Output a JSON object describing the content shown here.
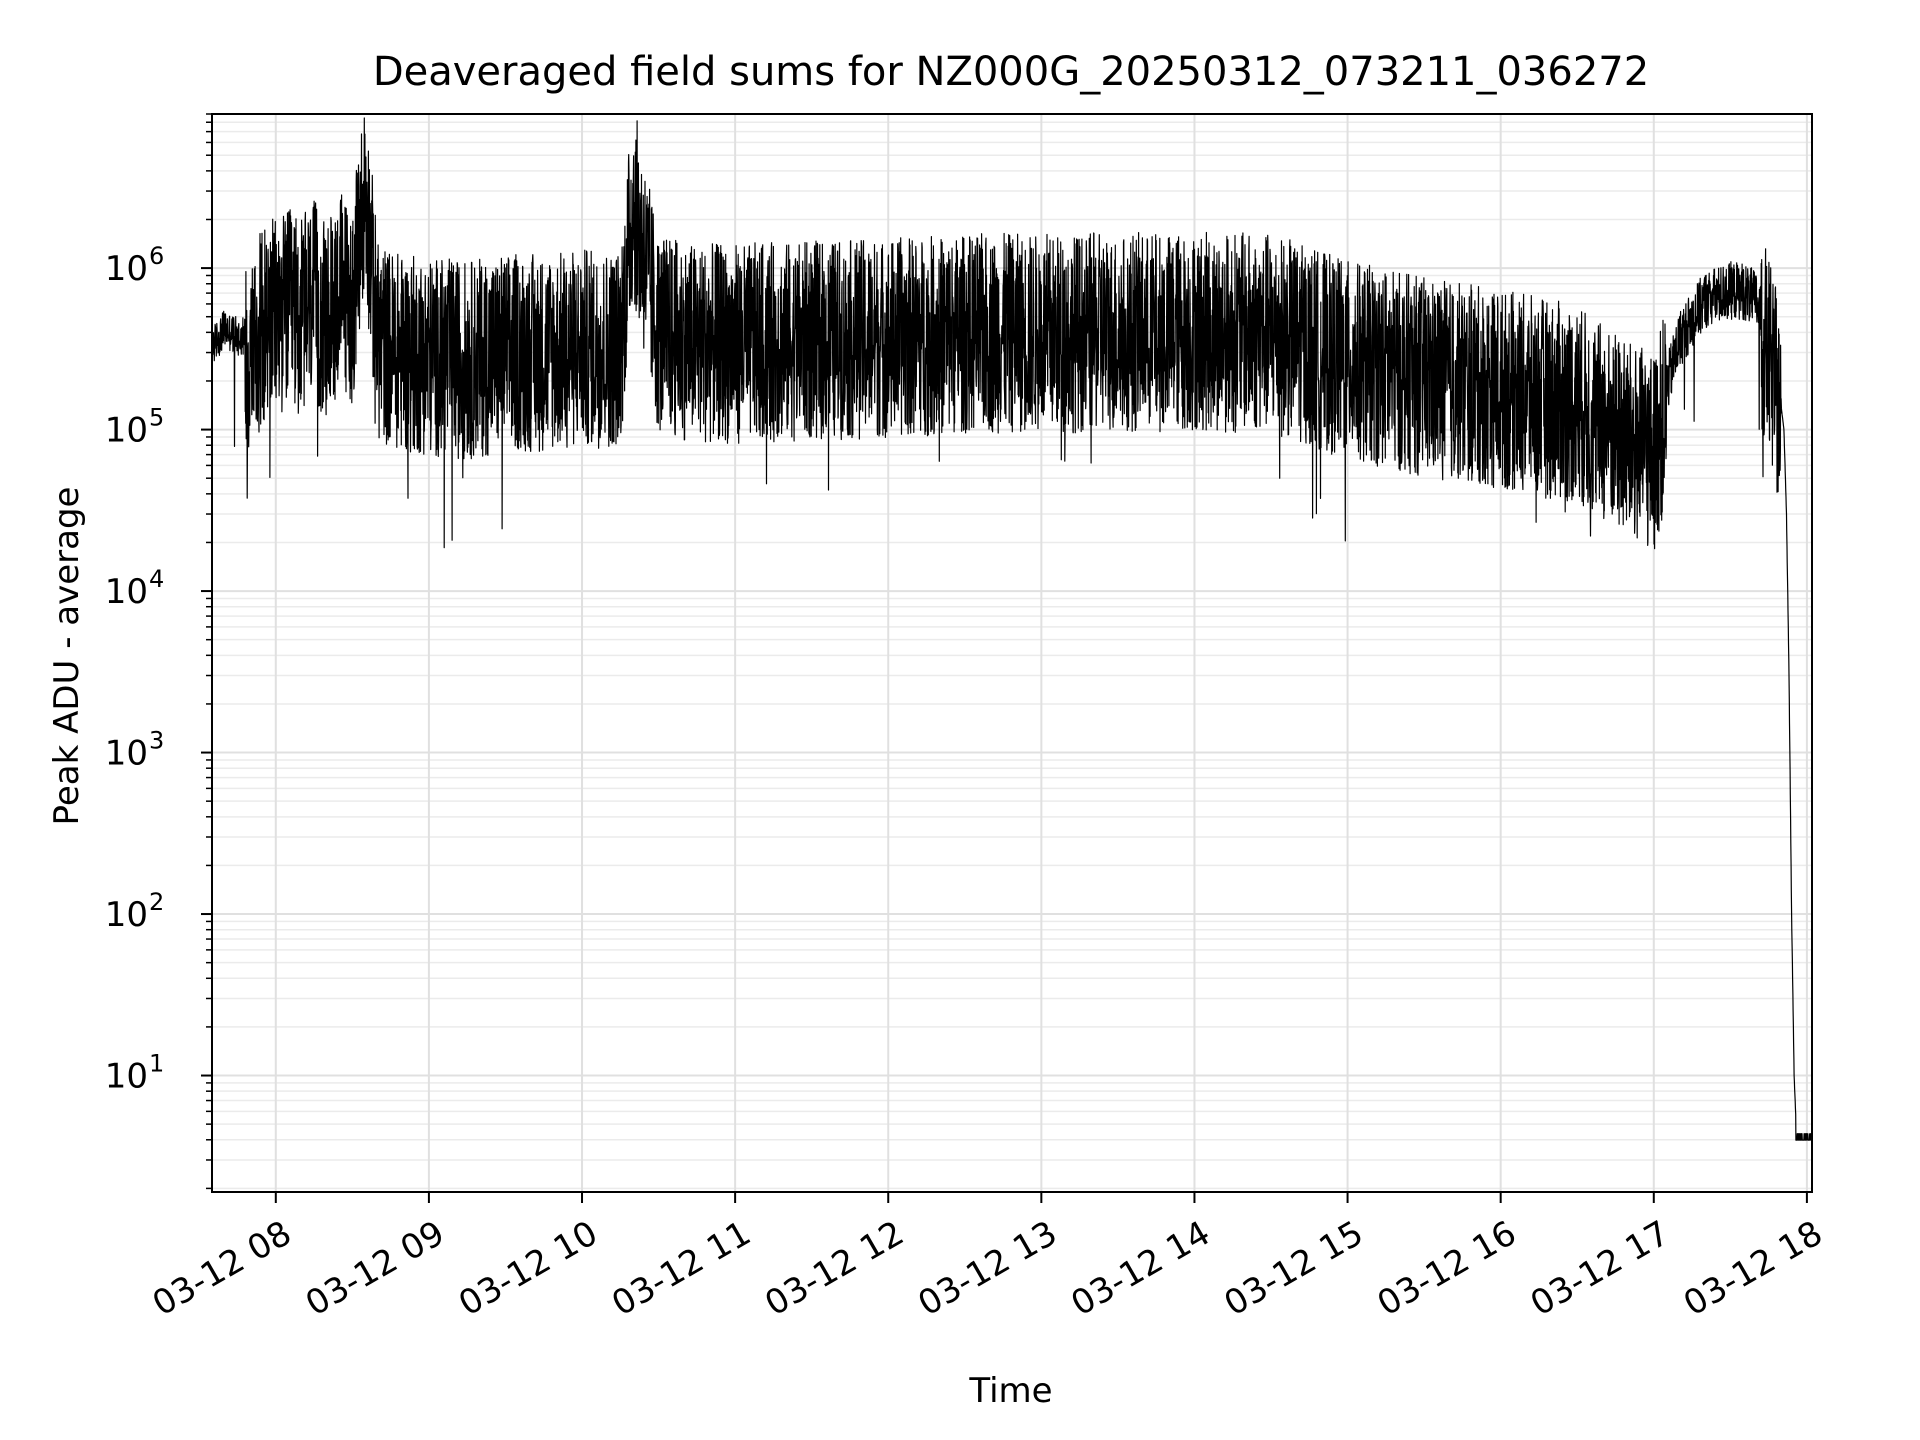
{
  "chart_data": {
    "type": "line",
    "title": "Deaveraged field sums for NZ000G_20250312_073211_036272",
    "xlabel": "Time",
    "ylabel": "Peak ADU - average",
    "x_scale": "time",
    "y_scale": "log",
    "xlim": [
      "2025-03-12T07:35",
      "2025-03-12T18:02"
    ],
    "ylim": [
      1.9,
      9000000
    ],
    "grid": true,
    "legend": "none",
    "x_ticks": [
      {
        "t": "2025-03-12T08:00",
        "label": "03-12 08"
      },
      {
        "t": "2025-03-12T09:00",
        "label": "03-12 09"
      },
      {
        "t": "2025-03-12T10:00",
        "label": "03-12 10"
      },
      {
        "t": "2025-03-12T11:00",
        "label": "03-12 11"
      },
      {
        "t": "2025-03-12T12:00",
        "label": "03-12 12"
      },
      {
        "t": "2025-03-12T13:00",
        "label": "03-12 13"
      },
      {
        "t": "2025-03-12T14:00",
        "label": "03-12 14"
      },
      {
        "t": "2025-03-12T15:00",
        "label": "03-12 15"
      },
      {
        "t": "2025-03-12T16:00",
        "label": "03-12 16"
      },
      {
        "t": "2025-03-12T17:00",
        "label": "03-12 17"
      },
      {
        "t": "2025-03-12T18:00",
        "label": "03-12 18"
      }
    ],
    "y_ticks": [
      {
        "value": 10,
        "base": "10",
        "exp": "1"
      },
      {
        "value": 100,
        "base": "10",
        "exp": "2"
      },
      {
        "value": 1000,
        "base": "10",
        "exp": "3"
      },
      {
        "value": 10000,
        "base": "10",
        "exp": "4"
      },
      {
        "value": 100000,
        "base": "10",
        "exp": "5"
      },
      {
        "value": 1000000,
        "base": "10",
        "exp": "6"
      }
    ],
    "series": [
      {
        "color": "#000000",
        "x": [
          "2025-03-12T07:35",
          "2025-03-12T07:40",
          "2025-03-12T07:45",
          "2025-03-12T07:50",
          "2025-03-12T07:55",
          "2025-03-12T08:00",
          "2025-03-12T08:05",
          "2025-03-12T08:10",
          "2025-03-12T08:15",
          "2025-03-12T08:20",
          "2025-03-12T08:25",
          "2025-03-12T08:30",
          "2025-03-12T08:35",
          "2025-03-12T08:40",
          "2025-03-12T08:45",
          "2025-03-12T08:50",
          "2025-03-12T09:00",
          "2025-03-12T09:15",
          "2025-03-12T09:30",
          "2025-03-12T09:45",
          "2025-03-12T10:00",
          "2025-03-12T10:15",
          "2025-03-12T10:20",
          "2025-03-12T10:30",
          "2025-03-12T10:45",
          "2025-03-12T11:00",
          "2025-03-12T11:30",
          "2025-03-12T12:00",
          "2025-03-12T12:30",
          "2025-03-12T13:00",
          "2025-03-12T13:30",
          "2025-03-12T14:00",
          "2025-03-12T14:30",
          "2025-03-12T15:00",
          "2025-03-12T15:30",
          "2025-03-12T16:00",
          "2025-03-12T16:30",
          "2025-03-12T16:50",
          "2025-03-12T17:00",
          "2025-03-12T17:05",
          "2025-03-12T17:10",
          "2025-03-12T17:20",
          "2025-03-12T17:30",
          "2025-03-12T17:35",
          "2025-03-12T17:40",
          "2025-03-12T17:44",
          "2025-03-12T17:48",
          "2025-03-12T17:51",
          "2025-03-12T17:52",
          "2025-03-12T17:53",
          "2025-03-12T17:54",
          "2025-03-12T17:55",
          "2025-03-12T17:56",
          "2025-03-12T17:57",
          "2025-03-12T17:58",
          "2025-03-12T18:00",
          "2025-03-12T18:02"
        ],
        "y": [
          350000,
          450000,
          400000,
          420000,
          650000,
          700000,
          800000,
          700000,
          900000,
          600000,
          1100000,
          800000,
          4500000,
          500000,
          450000,
          420000,
          400000,
          380000,
          420000,
          420000,
          450000,
          450000,
          3800000,
          550000,
          480000,
          480000,
          500000,
          520000,
          550000,
          560000,
          560000,
          570000,
          560000,
          380000,
          300000,
          250000,
          200000,
          120000,
          100000,
          200000,
          400000,
          700000,
          800000,
          800000,
          700000,
          450000,
          250000,
          100000,
          30000,
          3000,
          100,
          10,
          4,
          4,
          4,
          4,
          4
        ]
      }
    ]
  }
}
